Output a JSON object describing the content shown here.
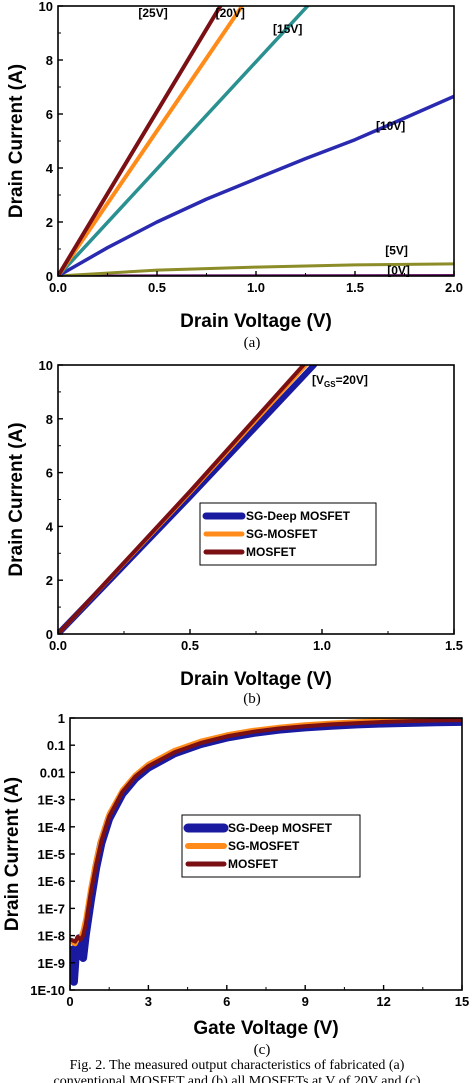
{
  "chart_data": [
    {
      "type": "line",
      "panel_label": "(a)",
      "xlabel": "Drain Voltage (V)",
      "ylabel": "Drain Current (A)",
      "xlim": [
        0,
        2.0
      ],
      "ylim": [
        0,
        10
      ],
      "xticks": [
        "0.0",
        "0.5",
        "1.0",
        "1.5",
        "2.0"
      ],
      "yticks": [
        "0",
        "2",
        "4",
        "6",
        "8",
        "10"
      ],
      "series": [
        {
          "name": "[0V]",
          "color": "#6b1a6b",
          "x": [
            0,
            2.0
          ],
          "y": [
            0,
            0.02
          ]
        },
        {
          "name": "[5V]",
          "color": "#8c8c28",
          "x": [
            0,
            0.5,
            1.0,
            1.5,
            2.0
          ],
          "y": [
            0,
            0.22,
            0.33,
            0.41,
            0.45
          ]
        },
        {
          "name": "[10V]",
          "color": "#2a2ab0",
          "x": [
            0,
            0.25,
            0.5,
            0.75,
            1.0,
            1.25,
            1.5,
            1.75,
            2.0
          ],
          "y": [
            0,
            1.05,
            2.0,
            2.85,
            3.6,
            4.35,
            5.05,
            5.85,
            6.65
          ]
        },
        {
          "name": "[15V]",
          "color": "#2a9090",
          "x": [
            0,
            1.26
          ],
          "y": [
            0,
            10
          ]
        },
        {
          "name": "[20V]",
          "color": "#ff8c1a",
          "x": [
            0,
            0.93
          ],
          "y": [
            0,
            10
          ]
        },
        {
          "name": "[25V]",
          "color": "#7a0f14",
          "x": [
            0,
            0.82
          ],
          "y": [
            0,
            10
          ]
        }
      ],
      "annotations": [
        {
          "text": "[25V]",
          "x": 0.48,
          "y": 9.6
        },
        {
          "text": "[20V]",
          "x": 0.87,
          "y": 9.6
        },
        {
          "text": "[15V]",
          "x": 1.16,
          "y": 9.0
        },
        {
          "text": "[10V]",
          "x": 1.68,
          "y": 5.4
        },
        {
          "text": "[5V]",
          "x": 1.71,
          "y": 0.8
        },
        {
          "text": "[0V]",
          "x": 1.72,
          "y": 0.05
        }
      ]
    },
    {
      "type": "line",
      "panel_label": "(b)",
      "xlabel": "Drain Voltage (V)",
      "ylabel": "Drain Current (A)",
      "xlim": [
        0,
        1.5
      ],
      "ylim": [
        0,
        10
      ],
      "xticks": [
        "0.0",
        "0.5",
        "1.0",
        "1.5"
      ],
      "yticks": [
        "0",
        "2",
        "4",
        "6",
        "8",
        "10"
      ],
      "annotation": {
        "main": "[V",
        "sub": "GS",
        "tail": "=20V]"
      },
      "legend_position": "center",
      "series": [
        {
          "name": "SG-Deep MOSFET",
          "color": "#1a1aa0",
          "x": [
            0,
            0.5,
            0.97
          ],
          "y": [
            0,
            5.1,
            10
          ]
        },
        {
          "name": "SG-MOSFET",
          "color": "#ff8c1a",
          "x": [
            0,
            0.5,
            0.94
          ],
          "y": [
            0,
            5.25,
            10
          ]
        },
        {
          "name": "MOSFET",
          "color": "#7a0f14",
          "x": [
            0,
            0.5,
            0.93
          ],
          "y": [
            0,
            5.3,
            10
          ]
        }
      ]
    },
    {
      "type": "line",
      "panel_label": "(c)",
      "xlabel": "Gate Voltage (V)",
      "ylabel": "Drain Current (A)",
      "xlim": [
        0,
        15
      ],
      "ylim": [
        1e-10,
        1
      ],
      "yscale": "log",
      "xticks": [
        "0",
        "3",
        "6",
        "9",
        "12",
        "15"
      ],
      "yticks": [
        "1E-10",
        "1E-9",
        "1E-8",
        "1E-7",
        "1E-6",
        "1E-5",
        "1E-4",
        "1E-3",
        "0.01",
        "0.1",
        "1"
      ],
      "legend_position": "center",
      "series": [
        {
          "name": "SG-Deep MOSFET",
          "color": "#1a1aa0",
          "x": [
            0.05,
            0.15,
            0.2,
            0.25,
            0.3,
            0.35,
            0.4,
            0.5,
            0.6,
            0.8,
            1.0,
            1.2,
            1.5,
            2.0,
            2.5,
            3.0,
            4.0,
            5.0,
            6.0,
            7.0,
            8.0,
            9.0,
            10.0,
            11.0,
            12.0,
            13.0,
            14.0,
            15.0
          ],
          "y": [
            3e-09,
            2e-10,
            1e-09,
            5e-09,
            3e-09,
            8e-09,
            2e-09,
            1.5e-09,
            1e-08,
            2e-07,
            3e-06,
            2.5e-05,
            0.0002,
            0.0016,
            0.006,
            0.015,
            0.05,
            0.11,
            0.19,
            0.28,
            0.37,
            0.45,
            0.52,
            0.58,
            0.63,
            0.66,
            0.7,
            0.72
          ]
        },
        {
          "name": "SG-MOSFET",
          "color": "#ff8c1a",
          "x": [
            0.05,
            0.2,
            0.3,
            0.4,
            0.5,
            0.6,
            0.8,
            1.0,
            1.2,
            1.5,
            2.0,
            2.5,
            3.0,
            4.0,
            5.0,
            6.0,
            7.0,
            8.0,
            9.0,
            10.0,
            11.0,
            12.0,
            13.0,
            14.0,
            15.0
          ],
          "y": [
            6e-09,
            5e-09,
            8e-09,
            8e-09,
            1.5e-08,
            4e-08,
            6e-07,
            6e-06,
            4e-05,
            0.0003,
            0.0022,
            0.008,
            0.02,
            0.065,
            0.14,
            0.24,
            0.35,
            0.46,
            0.56,
            0.65,
            0.73,
            0.8,
            0.86,
            0.9,
            0.93
          ]
        },
        {
          "name": "MOSFET",
          "color": "#7a0f14",
          "x": [
            0.05,
            0.2,
            0.3,
            0.4,
            0.5,
            0.6,
            0.8,
            1.0,
            1.2,
            1.5,
            2.0,
            2.5,
            3.0,
            4.0,
            5.0,
            6.0,
            7.0,
            8.0,
            9.0,
            10.0,
            11.0,
            12.0,
            13.0,
            14.0,
            15.0
          ],
          "y": [
            7e-09,
            6e-09,
            9e-09,
            7e-09,
            1e-08,
            2.5e-08,
            4e-07,
            4e-06,
            3e-05,
            0.00024,
            0.0019,
            0.007,
            0.017,
            0.055,
            0.12,
            0.21,
            0.31,
            0.41,
            0.5,
            0.58,
            0.65,
            0.72,
            0.77,
            0.81,
            0.84
          ]
        }
      ]
    }
  ],
  "caption": {
    "line1": "Fig. 2. The measured output characteristics of fabricated (a)",
    "line2": "conventional MOSFET and (b) all MOSFETs at V    of 20V and (c)"
  }
}
